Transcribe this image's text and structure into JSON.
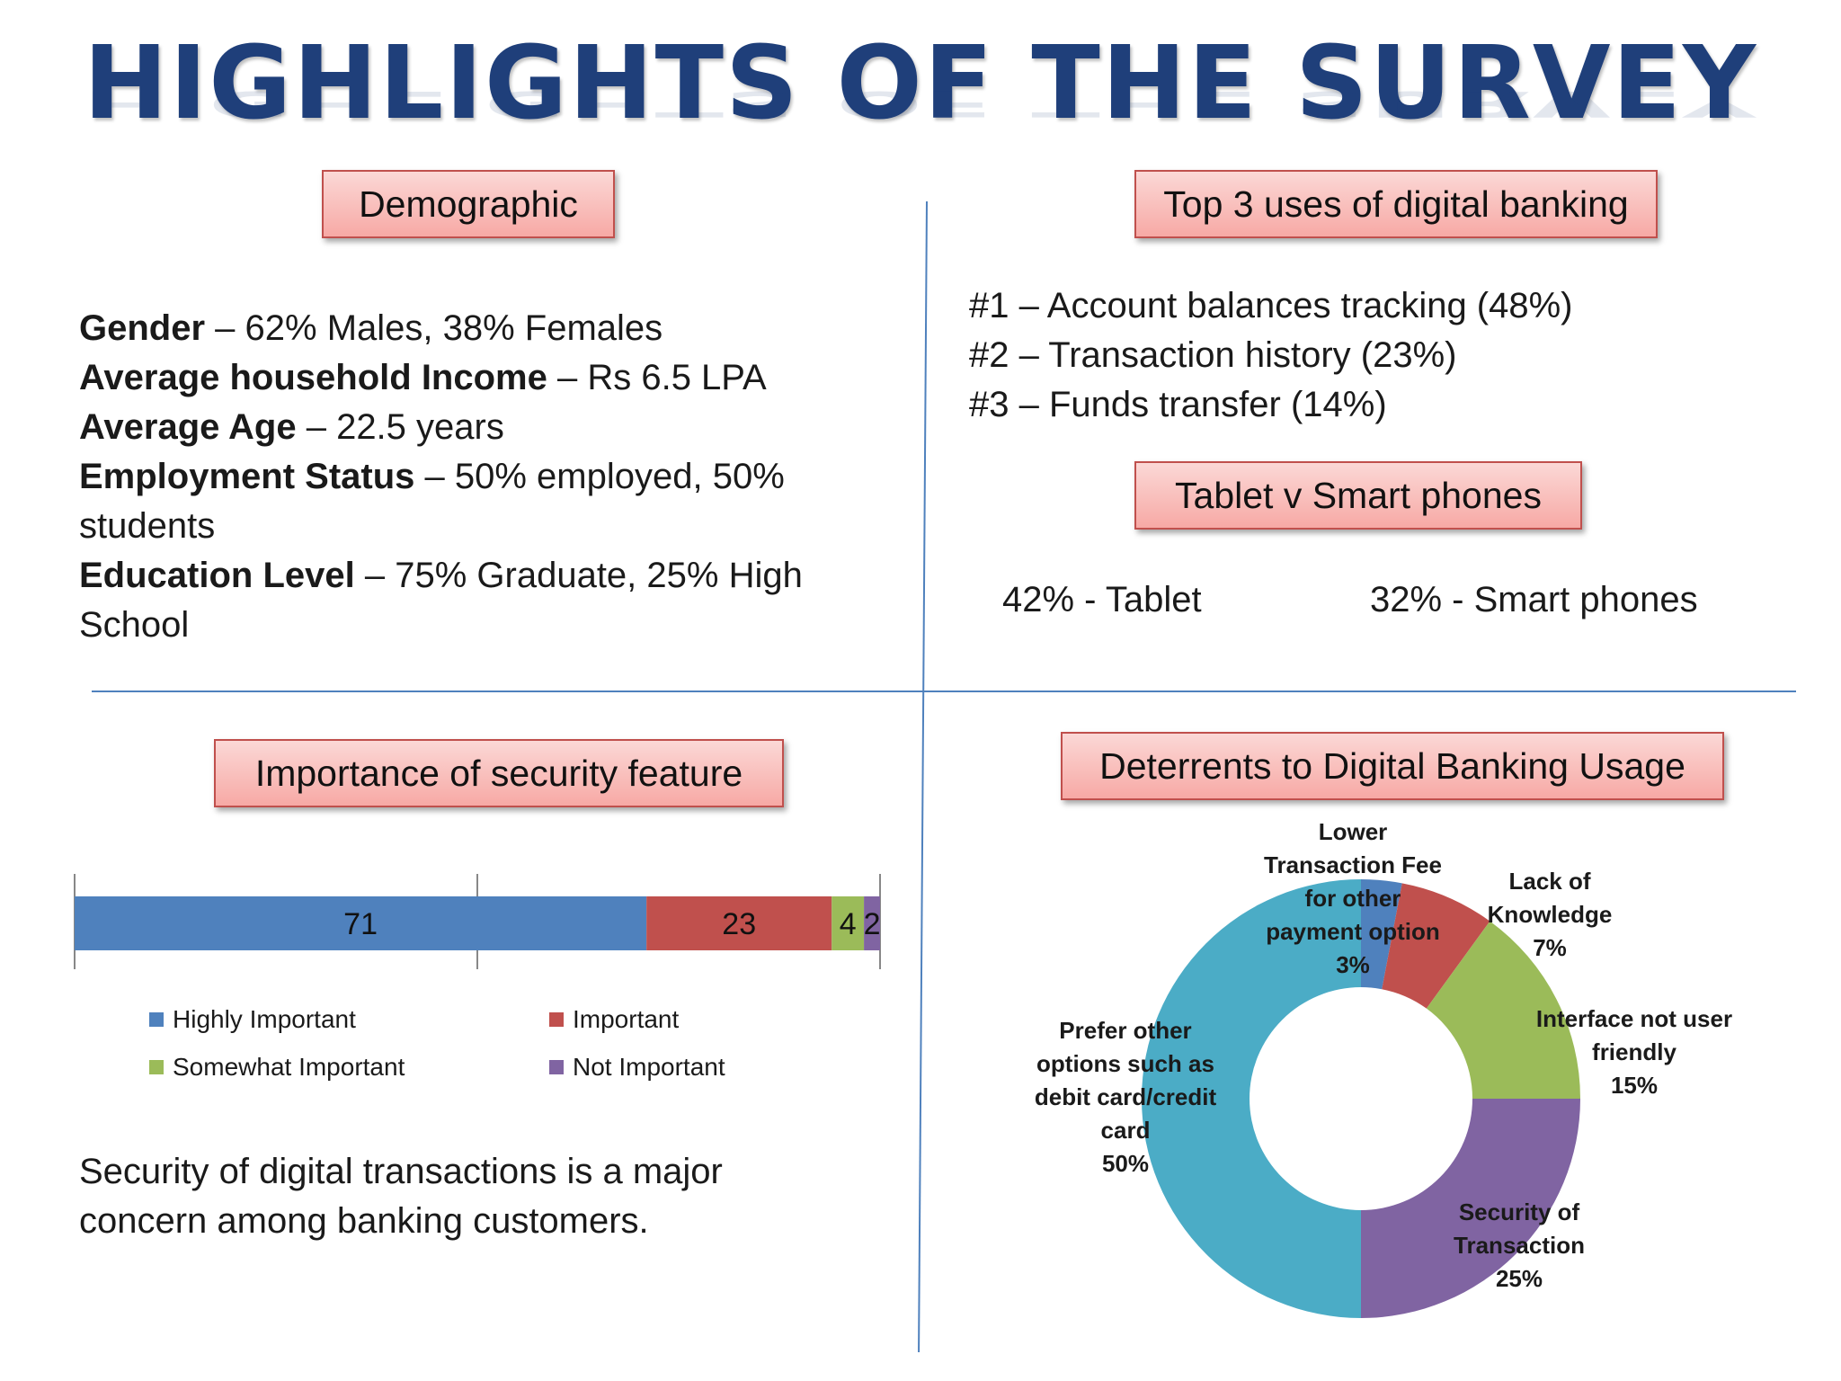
{
  "title": "HIGHLIGHTS OF THE SURVEY",
  "demographic": {
    "heading": "Demographic",
    "rows": [
      {
        "label": "Gender",
        "value": " – 62% Males, 38% Females"
      },
      {
        "label": "Average household Income",
        "value": " – Rs 6.5 LPA"
      },
      {
        "label": "Average Age",
        "value": " – 22.5 years"
      },
      {
        "label": "Employment Status",
        "value": " – 50% employed, 50% students"
      },
      {
        "label": "Education Level",
        "value": " – 75% Graduate, 25% High School"
      }
    ]
  },
  "top_uses": {
    "heading": "Top 3 uses of digital banking",
    "items": [
      "#1 – Account balances tracking (48%)",
      "#2 – Transaction history (23%)",
      "#3 – Funds transfer (14%)"
    ]
  },
  "devices": {
    "heading": "Tablet v Smart phones",
    "tablet": "42% - Tablet",
    "phones": "32% - Smart phones"
  },
  "security": {
    "heading": "Importance of security feature",
    "text": "Security of digital transactions is a major concern among banking customers."
  },
  "deterrents": {
    "heading": "Deterrents to Digital Banking Usage"
  },
  "chart_data": [
    {
      "type": "bar",
      "orientation": "horizontal-stacked",
      "categories": [
        ""
      ],
      "series": [
        {
          "name": "Highly Important",
          "values": [
            71
          ],
          "color": "#4f81bd"
        },
        {
          "name": "Important",
          "values": [
            23
          ],
          "color": "#c0504d"
        },
        {
          "name": "Somewhat Important",
          "values": [
            4
          ],
          "color": "#9bbb59"
        },
        {
          "name": "Not Important",
          "values": [
            2
          ],
          "color": "#8064a2"
        }
      ],
      "xlim": [
        0,
        100
      ],
      "legend": "bottom"
    },
    {
      "type": "pie",
      "style": "donut",
      "slices": [
        {
          "label": [
            "Lower",
            "Transaction Fee",
            "for other",
            "payment option",
            "3%"
          ],
          "value": 3,
          "color": "#4f81bd"
        },
        {
          "label": [
            "Lack of",
            "Knowledge",
            "7%"
          ],
          "value": 7,
          "color": "#c0504d"
        },
        {
          "label": [
            "Interface not user",
            "friendly",
            "15%"
          ],
          "value": 15,
          "color": "#9bbb59"
        },
        {
          "label": [
            "Security of",
            "Transaction",
            "25%"
          ],
          "value": 25,
          "color": "#8064a2"
        },
        {
          "label": [
            "Prefer other",
            "options such as",
            "debit card/credit",
            "card",
            "50%"
          ],
          "value": 50,
          "color": "#4bacc6"
        }
      ]
    }
  ]
}
